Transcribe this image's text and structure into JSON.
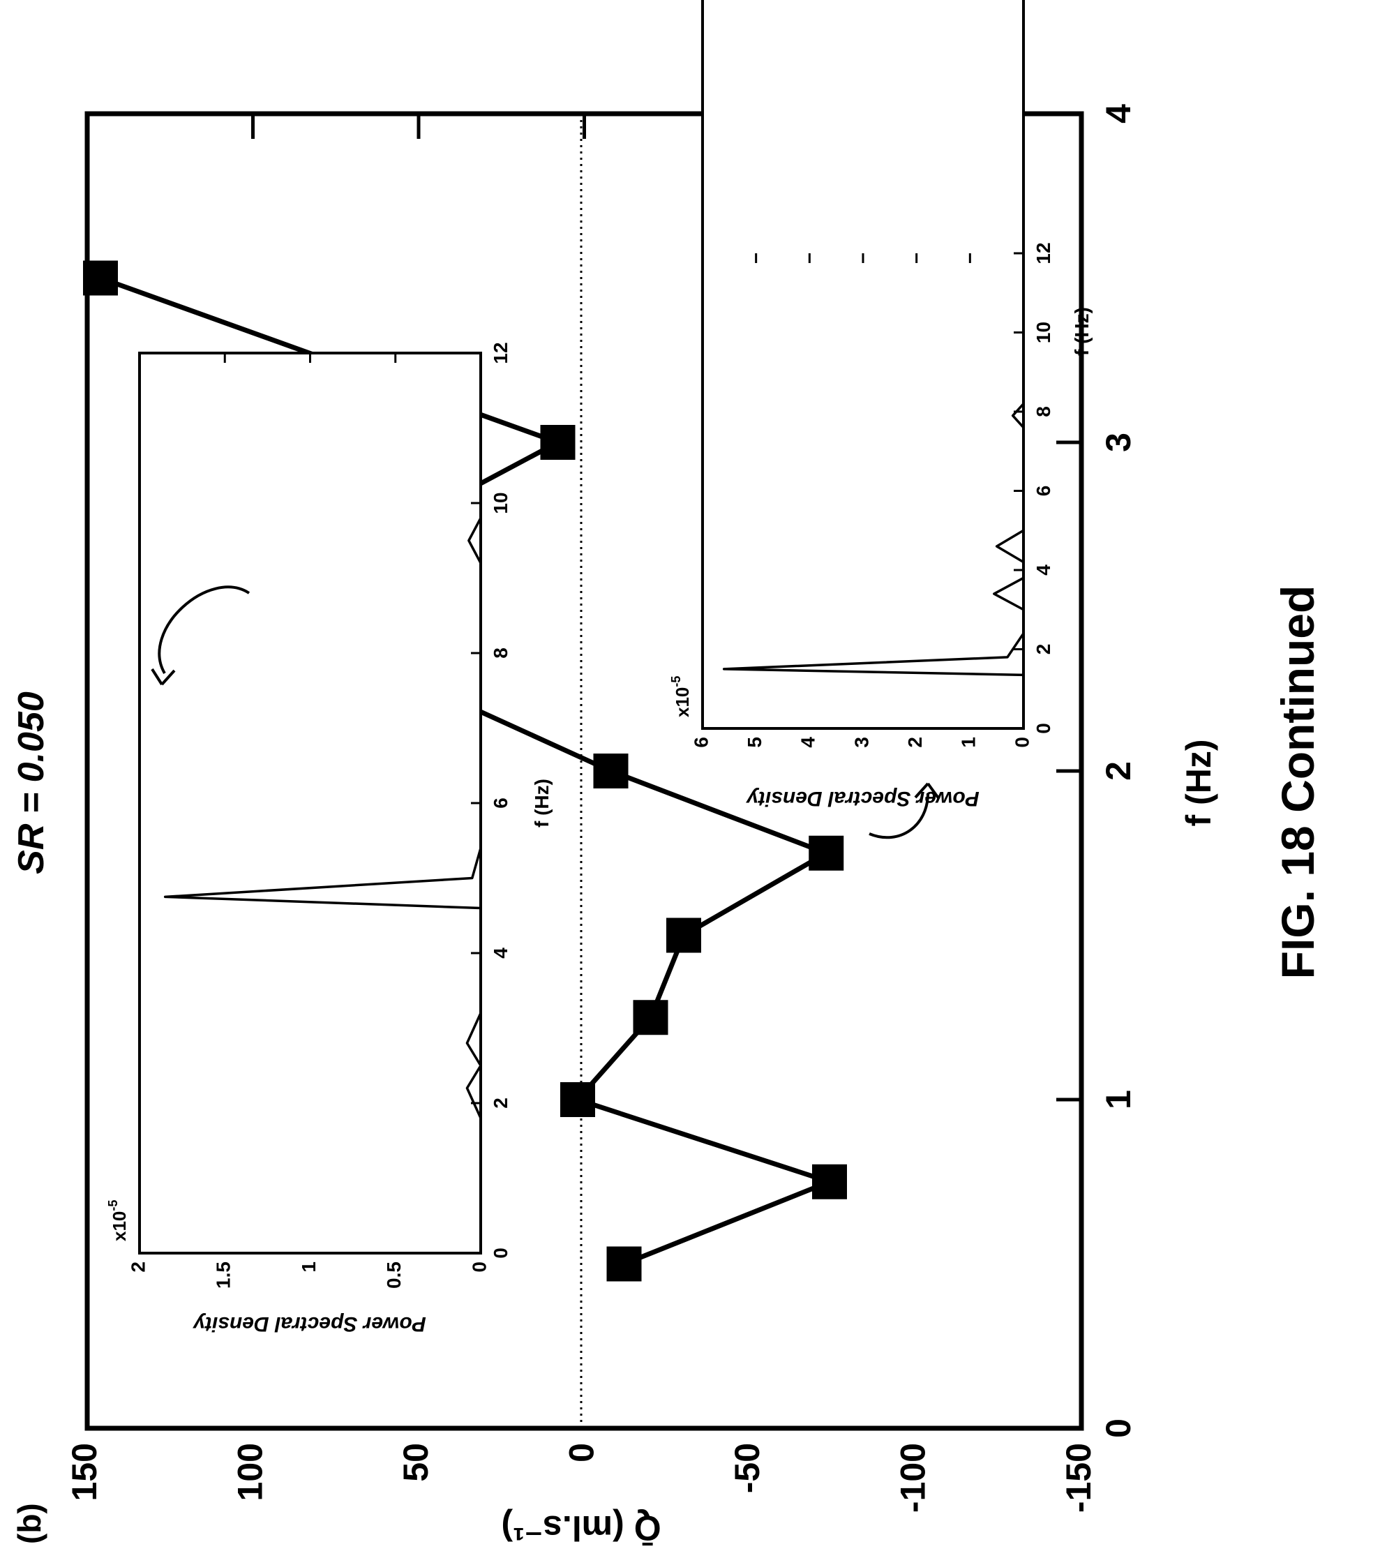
{
  "panel_label": "(b)",
  "figure_caption": "FIG. 18 Continued",
  "chart_data": [
    {
      "type": "line",
      "title": "SR = 0.050",
      "xlabel": "f (Hz)",
      "ylabel": "Q̄ (ml.s⁻¹)",
      "xlim": [
        0,
        4
      ],
      "ylim": [
        -150,
        150
      ],
      "xticks": [
        "0",
        "1",
        "2",
        "3",
        "4"
      ],
      "yticks": [
        "-150",
        "-100",
        "-50",
        "0",
        "50",
        "100",
        "150"
      ],
      "zero_line": "dotted",
      "marker": "square",
      "series": [
        {
          "x": [
            0.5,
            0.75,
            1.0,
            1.25,
            1.5,
            1.75,
            2.0,
            2.5,
            3.0,
            3.5
          ],
          "y": [
            -12,
            -74,
            2,
            -20,
            -30,
            -73,
            -8,
            101,
            8,
            146
          ]
        }
      ],
      "x": [
        0.5,
        0.75,
        1.0,
        1.25,
        1.5,
        1.75,
        2.0,
        2.5,
        3.0,
        3.5
      ],
      "y_values": [
        -12,
        -74,
        2,
        -20,
        -30,
        -73,
        -8,
        101,
        8,
        146
      ]
    },
    {
      "type": "line",
      "xlabel": "f (Hz)",
      "ylabel": "Power Spectral Density",
      "scale_label": "x10",
      "scale_exp": "-5",
      "xlim": [
        0,
        12
      ],
      "ylim": [
        0,
        2
      ],
      "xticks": [
        "0",
        "2",
        "4",
        "6",
        "8",
        "10",
        "12"
      ],
      "yticks": [
        "0",
        "0.5",
        "1",
        "1.5",
        "2"
      ],
      "series": [
        {
          "x": [
            0,
            1.8,
            2.2,
            2.5,
            2.8,
            3.2,
            4.6,
            4.75,
            5.0,
            5.4,
            9.2,
            9.5,
            9.8,
            12
          ],
          "y": [
            0,
            0,
            0.08,
            0,
            0.08,
            0,
            0,
            1.85,
            0.05,
            0,
            0,
            0.07,
            0,
            0
          ]
        }
      ]
    },
    {
      "type": "line",
      "xlabel": "f (Hz)",
      "ylabel": "Power Spectral Density",
      "scale_label": "x10",
      "scale_exp": "-5",
      "xlim": [
        0,
        12
      ],
      "ylim": [
        0,
        6
      ],
      "xticks": [
        "0",
        "2",
        "4",
        "6",
        "8",
        "10",
        "12"
      ],
      "yticks": [
        "0",
        "1",
        "2",
        "3",
        "4",
        "5",
        "6"
      ],
      "series": [
        {
          "x": [
            0,
            1.35,
            1.5,
            1.8,
            2.4,
            3.0,
            3.4,
            3.8,
            4.2,
            4.6,
            5.0,
            5.4,
            7.6,
            7.9,
            8.2,
            12
          ],
          "y": [
            0,
            0,
            5.6,
            0.3,
            0,
            0,
            0.55,
            0,
            0,
            0.5,
            0,
            0,
            0,
            0.2,
            0,
            0
          ]
        }
      ]
    }
  ]
}
